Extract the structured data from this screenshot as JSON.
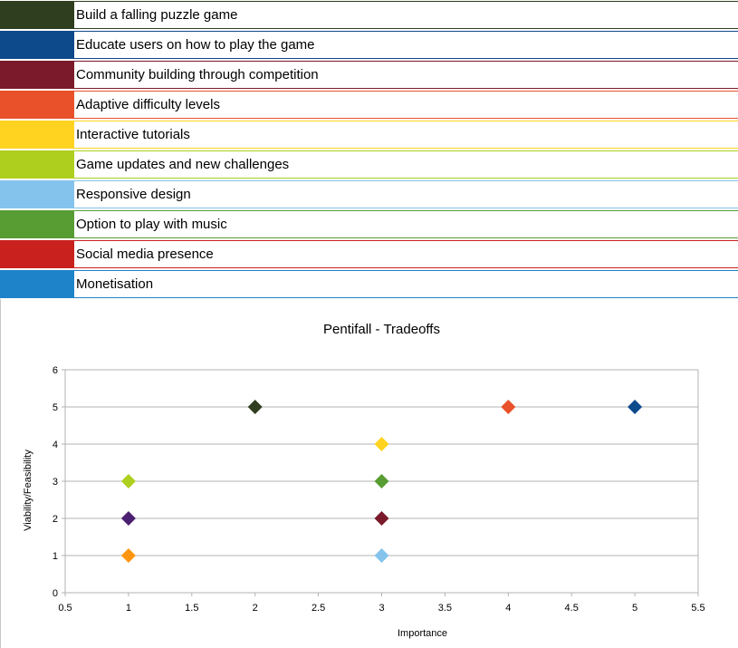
{
  "legend": [
    {
      "label": "Build a falling puzzle game",
      "color": "#2f3e1f"
    },
    {
      "label": "Educate users on how to play the game",
      "color": "#0d4a8c"
    },
    {
      "label": "Community building through competition",
      "color": "#7a1a2a"
    },
    {
      "label": "Adaptive difficulty levels",
      "color": "#e8512a"
    },
    {
      "label": "Interactive tutorials",
      "color": "#ffd320"
    },
    {
      "label": "Game updates and new challenges",
      "color": "#aecf1e"
    },
    {
      "label": "Responsive design",
      "color": "#84c4ec"
    },
    {
      "label": "Option to play with music",
      "color": "#579d33"
    },
    {
      "label": "Social media presence",
      "color": "#c9211e"
    },
    {
      "label": "Monetisation",
      "color": "#1f83c9"
    }
  ],
  "chart_data": {
    "type": "scatter",
    "title": "Pentifall - Tradeoffs",
    "xlabel": "Importance",
    "ylabel": "Viability/Feasibility",
    "xlim": [
      0.5,
      5.5
    ],
    "ylim": [
      0,
      6
    ],
    "xticks": [
      "0.5",
      "1",
      "1.5",
      "2",
      "2.5",
      "3",
      "3.5",
      "4",
      "4.5",
      "5",
      "5.5"
    ],
    "yticks": [
      "0",
      "1",
      "2",
      "3",
      "4",
      "5",
      "6"
    ],
    "grid": "horizontal",
    "marker": "diamond",
    "points": [
      {
        "x": 2,
        "y": 5,
        "color": "#2f3e1f"
      },
      {
        "x": 4,
        "y": 5,
        "color": "#e8512a"
      },
      {
        "x": 5,
        "y": 5,
        "color": "#0d4a8c"
      },
      {
        "x": 3,
        "y": 4,
        "color": "#ffd320"
      },
      {
        "x": 1,
        "y": 3,
        "color": "#aecf1e"
      },
      {
        "x": 3,
        "y": 3,
        "color": "#579d33"
      },
      {
        "x": 1,
        "y": 2,
        "color": "#4b1f6f"
      },
      {
        "x": 3,
        "y": 2,
        "color": "#7a1a2a"
      },
      {
        "x": 1,
        "y": 1,
        "color": "#ff950e"
      },
      {
        "x": 3,
        "y": 1,
        "color": "#84c4ec"
      }
    ]
  }
}
